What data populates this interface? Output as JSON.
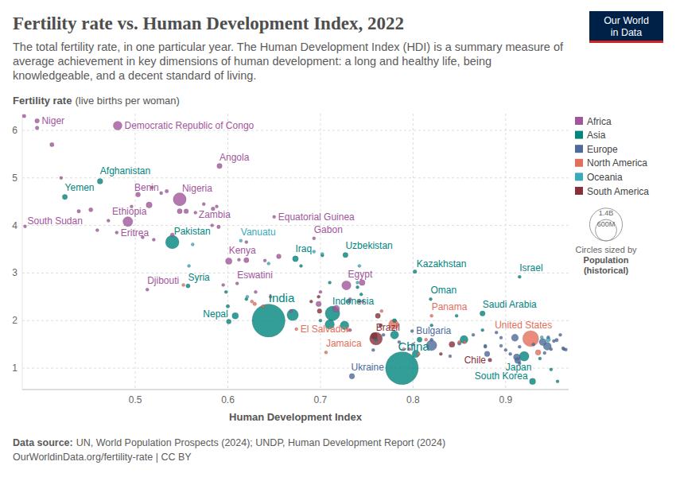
{
  "chart_data": {
    "type": "scatter",
    "title": "Fertility rate vs. Human Development Index, 2022",
    "subtitle": "The total fertility rate, in one particular year. The Human Development Index (HDI) is a summary measure of average achievement in key dimensions of human development: a long and healthy life, being knowledgeable, and a decent standard of living.",
    "ylabel": "Fertility rate",
    "ylabel_note": "(live births per woman)",
    "xlabel": "Human Development Index",
    "logo": [
      "Our World",
      "in Data"
    ],
    "source_label": "Data source:",
    "source": "UN, World Population Prospects (2024); UNDP, Human Development Report (2024)",
    "footer": "OurWorldinData.org/fertility-rate | CC BY",
    "xlim": [
      0.378,
      0.968
    ],
    "xticks": [
      0.5,
      0.6,
      0.7,
      0.8,
      0.9
    ],
    "ylim": [
      0.55,
      6.35
    ],
    "yticks": [
      1,
      2,
      3,
      4,
      5,
      6
    ],
    "grid": true,
    "legend": "right",
    "size_legend": {
      "values": [
        1400,
        600
      ],
      "labels": [
        "1.4B",
        "600M"
      ],
      "title": "Circles sized by",
      "variable": "Population",
      "note": "(historical)"
    },
    "series": [
      {
        "name": "Africa",
        "color": "#a2559c",
        "x": [
          0.394,
          0.481,
          0.591,
          0.548,
          0.528,
          0.492,
          0.584,
          0.381,
          0.48,
          0.65,
          0.693,
          0.601,
          0.61,
          0.513,
          0.728,
          0.38,
          0.394,
          0.41,
          0.42,
          0.439,
          0.452,
          0.459,
          0.471,
          0.496,
          0.503,
          0.515,
          0.518,
          0.534,
          0.548,
          0.555,
          0.565,
          0.574,
          0.583,
          0.588,
          0.59,
          0.508,
          0.52,
          0.54,
          0.62,
          0.612,
          0.62,
          0.64,
          0.655,
          0.595,
          0.63,
          0.646,
          0.668,
          0.7,
          0.698,
          0.745,
          0.717,
          0.732,
          0.732,
          0.746,
          0.796
        ],
        "values": [
          6.2,
          6.1,
          5.25,
          4.55,
          4.68,
          4.08,
          4.35,
          3.98,
          3.85,
          4.18,
          3.73,
          3.25,
          2.78,
          2.65,
          2.74,
          6.3,
          6.05,
          5.7,
          5.0,
          4.3,
          4.33,
          3.9,
          4.1,
          4.4,
          4.65,
          4.43,
          4.8,
          4.72,
          4.3,
          4.3,
          4.27,
          4.45,
          4.0,
          4.4,
          3.97,
          3.75,
          3.7,
          3.8,
          3.65,
          3.28,
          3.27,
          3.26,
          3.35,
          2.75,
          2.6,
          2.5,
          2.2,
          2.6,
          2.35,
          2.8,
          2.25,
          2.45,
          1.8,
          2.4,
          1.4
        ],
        "sizes": [
          26,
          102,
          36,
          223,
          14,
          127,
          20,
          11,
          3.7,
          1.7,
          2.4,
          55,
          1.2,
          1.1,
          112,
          18,
          18,
          23,
          13,
          17,
          22,
          10,
          7,
          10,
          30,
          48,
          14,
          17,
          33,
          28,
          8,
          10,
          11,
          9,
          17,
          5,
          6,
          20,
          5,
          2.5,
          34,
          2,
          28,
          4,
          3,
          6,
          1,
          1,
          38,
          45,
          60,
          1,
          12,
          7,
          1.3
        ],
        "labels": [
          "Niger",
          "Democratic Republic of Congo",
          "Angola",
          "Nigeria",
          "Benin",
          "Ethiopia",
          "Zambia",
          "South Sudan",
          "Eritrea",
          "Equatorial Guinea",
          "Gabon",
          "Kenya",
          "Eswatini",
          "Djibouti",
          "Egypt",
          null,
          null,
          null,
          null,
          null,
          null,
          null,
          null,
          null,
          null,
          null,
          null,
          null,
          null,
          null,
          null,
          null,
          null,
          null,
          null,
          null,
          null,
          null,
          null,
          null,
          null,
          null,
          null,
          null,
          null,
          null,
          null,
          null,
          null,
          null,
          null,
          null,
          null,
          null,
          null
        ]
      },
      {
        "name": "Asia",
        "color": "#00847e",
        "x": [
          0.462,
          0.424,
          0.54,
          0.557,
          0.601,
          0.644,
          0.673,
          0.727,
          0.713,
          0.802,
          0.915,
          0.819,
          0.875,
          0.788,
          0.92,
          0.929,
          0.67,
          0.598,
          0.702,
          0.679,
          0.71,
          0.62,
          0.608,
          0.71,
          0.726,
          0.74,
          0.78,
          0.803,
          0.855,
          0.807,
          0.875,
          0.76,
          0.949,
          0.956,
          0.78,
          0.6,
          0.847,
          0.937,
          0.744,
          0.82,
          0.7
        ],
        "values": [
          4.93,
          4.6,
          3.65,
          2.73,
          1.98,
          2.0,
          3.3,
          3.38,
          2.15,
          3.03,
          2.92,
          2.45,
          2.15,
          1.0,
          1.25,
          0.72,
          2.12,
          2.6,
          3.37,
          3.15,
          2.8,
          2.45,
          2.1,
          1.92,
          1.9,
          2.7,
          1.7,
          1.3,
          1.6,
          1.6,
          1.8,
          1.6,
          0.97,
          0.72,
          2.0,
          2.3,
          2.1,
          1.2,
          2.55,
          1.9,
          2.0
        ],
        "sizes": [
          41,
          34,
          240,
          23,
          31,
          1429,
          45,
          36,
          278,
          20,
          9.5,
          4.6,
          37,
          1412,
          124,
          52,
          173,
          1,
          6.7,
          10,
          6,
          7.5,
          54,
          117,
          99,
          11,
          89,
          72,
          85,
          34,
          2.7,
          10,
          6,
          7.5,
          22,
          17,
          4.3,
          9.4,
          6.4,
          1.5,
          3.3
        ],
        "labels": [
          "Afghanistan",
          "Yemen",
          "Pakistan",
          "Syria",
          "Nepal",
          "India",
          "Iraq",
          "Uzbekistan",
          "Indonesia",
          "Kazakhstan",
          "Israel",
          "Oman",
          "Saudi Arabia",
          "China",
          "Japan",
          "South Korea",
          null,
          null,
          null,
          null,
          null,
          null,
          null,
          null,
          null,
          null,
          null,
          null,
          null,
          null,
          null,
          null,
          null,
          null,
          null,
          null,
          null,
          null,
          null,
          null,
          null
        ]
      },
      {
        "name": "Europe",
        "color": "#4c6a9c",
        "x": [
          0.799,
          0.734,
          0.757,
          0.768,
          0.785,
          0.8,
          0.82,
          0.82,
          0.84,
          0.865,
          0.85,
          0.878,
          0.88,
          0.878,
          0.89,
          0.895,
          0.9,
          0.895,
          0.905,
          0.912,
          0.913,
          0.915,
          0.93,
          0.91,
          0.94,
          0.945,
          0.946,
          0.949,
          0.952,
          0.955,
          0.942,
          0.962,
          0.963,
          0.965,
          0.959,
          0.915
        ],
        "values": [
          1.78,
          0.83,
          1.38,
          1.7,
          1.55,
          1.5,
          1.6,
          1.48,
          1.25,
          1.7,
          1.52,
          1.47,
          1.3,
          1.45,
          1.75,
          1.47,
          1.38,
          1.64,
          1.3,
          1.23,
          1.16,
          1.45,
          1.5,
          1.64,
          1.55,
          1.46,
          1.65,
          1.4,
          1.57,
          1.59,
          1.32,
          1.42,
          1.4,
          1.39,
          1.7,
          1.1
        ],
        "sizes": [
          6.7,
          38,
          3,
          2.5,
          2,
          7,
          9,
          144,
          3,
          0.6,
          19,
          10,
          38,
          4,
          1.9,
          5.5,
          10,
          10,
          10,
          59,
          48,
          1.3,
          9,
          65,
          67,
          84,
          5,
          12,
          10,
          18,
          5.5,
          5.9,
          5.5,
          9,
          0.4,
          0.5
        ],
        "labels": [
          "Bulgaria",
          "Ukraine",
          null,
          null,
          null,
          null,
          null,
          null,
          null,
          null,
          null,
          null,
          null,
          null,
          null,
          null,
          null,
          null,
          null,
          null,
          null,
          null,
          null,
          null,
          null,
          null,
          null,
          null,
          null,
          null,
          null,
          null,
          null,
          null,
          null,
          null
        ]
      },
      {
        "name": "North America",
        "color": "#e56e5a",
        "x": [
          0.82,
          0.674,
          0.706,
          0.927,
          0.779,
          0.552,
          0.626,
          0.638,
          0.629,
          0.766,
          0.79,
          0.806,
          0.85,
          0.856,
          0.935,
          0.814,
          0.73
        ],
        "values": [
          2.1,
          1.82,
          1.33,
          1.62,
          1.92,
          2.75,
          2.4,
          2.3,
          2.35,
          2.2,
          1.4,
          1.3,
          1.55,
          1.55,
          1.33,
          1.6,
          1.8
        ],
        "sizes": [
          4.4,
          6.3,
          2.8,
          336,
          128,
          11,
          10,
          7,
          17,
          11,
          11,
          5,
          0.3,
          0.4,
          39,
          1.5,
          0.2
        ],
        "labels": [
          "Panama",
          "El Salvador",
          "Jamaica",
          "United States",
          null,
          null,
          null,
          null,
          null,
          null,
          null,
          null,
          null,
          null,
          null,
          null,
          null
        ]
      },
      {
        "name": "Oceania",
        "color": "#38aaba",
        "x": [
          0.614,
          0.558,
          0.562,
          0.644,
          0.702,
          0.742,
          0.74,
          0.729,
          0.946,
          0.939,
          0.621,
          0.693
        ],
        "values": [
          3.68,
          3.15,
          3.6,
          3.2,
          3.4,
          3.15,
          2.8,
          2.4,
          1.6,
          1.65,
          2.5,
          3.45
        ],
        "sizes": [
          0.33,
          10,
          0.7,
          0.13,
          0.22,
          0.1,
          0.1,
          0.9,
          26,
          5,
          0.1,
          0.1
        ],
        "labels": [
          "Vanuatu",
          null,
          null,
          null,
          null,
          null,
          null,
          null,
          null,
          null,
          null,
          null
        ]
      },
      {
        "name": "South America",
        "color": "#883039",
        "x": [
          0.76,
          0.883,
          0.758,
          0.698,
          0.765,
          0.762,
          0.731,
          0.699,
          0.842,
          0.83,
          0.742,
          0.69
        ],
        "values": [
          1.62,
          1.17,
          1.68,
          2.5,
          1.9,
          2.1,
          2.4,
          2.2,
          1.5,
          1.3,
          2.4,
          2.4
        ],
        "sizes": [
          216,
          20,
          52,
          12,
          18,
          34,
          7,
          28,
          45,
          3.4,
          0.8,
          0.6
        ],
        "labels": [
          "Brazil",
          "Chile",
          null,
          null,
          null,
          null,
          null,
          null,
          null,
          null,
          null,
          null
        ]
      }
    ]
  }
}
